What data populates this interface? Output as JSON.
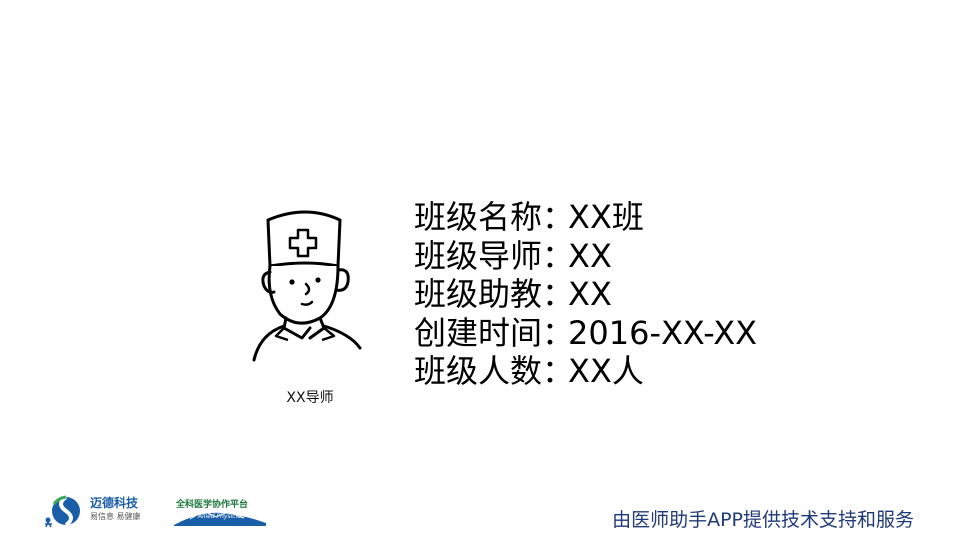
{
  "tutor": {
    "caption": "XX导师"
  },
  "info": [
    {
      "label": "班级名称",
      "colon": "：",
      "value": "XX班"
    },
    {
      "label": "班级导师",
      "colon": "：",
      "value": "XX"
    },
    {
      "label": "班级助教",
      "colon": "：",
      "value": "XX"
    },
    {
      "label": "创建时间",
      "colon": "：",
      "value": "2016-XX-XX"
    },
    {
      "label": "班级人数",
      "colon": "：",
      "value": "XX人"
    }
  ],
  "footer": {
    "logo1_name": "迈德科技",
    "logo1_slogan": "易信息 易健康",
    "logo2_name": "全科医学协作平台",
    "logo2_sub": "Allied Physician",
    "credit": "由医师助手APP提供技术支持和服务",
    "colors": {
      "brand_blue": "#1a5ea8",
      "brand_green": "#3aaa5c",
      "credit": "#1f3a78"
    }
  }
}
